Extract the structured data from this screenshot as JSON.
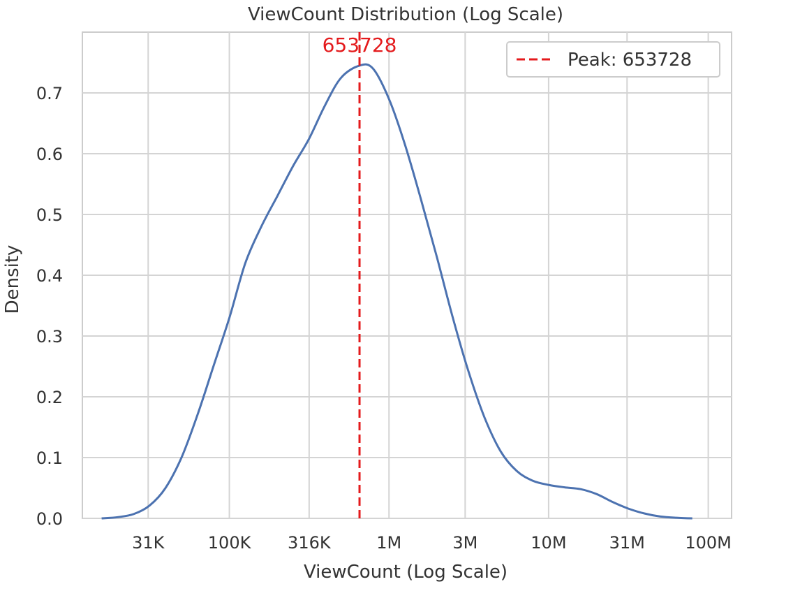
{
  "chart_data": {
    "type": "line",
    "title": "ViewCount Distribution (Log Scale)",
    "xlabel": "ViewCount (Log Scale)",
    "ylabel": "Density",
    "x_scale": "log",
    "xlim": [
      12000,
      140000000
    ],
    "ylim": [
      0,
      0.8
    ],
    "grid": true,
    "legend_position": "top-right",
    "x_ticks": [
      {
        "value": 31000,
        "label": "31K"
      },
      {
        "value": 100000,
        "label": "100K"
      },
      {
        "value": 316000,
        "label": "316K"
      },
      {
        "value": 1000000,
        "label": "1M"
      },
      {
        "value": 3000000,
        "label": "3M"
      },
      {
        "value": 10000000,
        "label": "10M"
      },
      {
        "value": 31000000,
        "label": "31M"
      },
      {
        "value": 100000000,
        "label": "100M"
      }
    ],
    "y_ticks": [
      {
        "value": 0.0,
        "label": "0.0"
      },
      {
        "value": 0.1,
        "label": "0.1"
      },
      {
        "value": 0.2,
        "label": "0.2"
      },
      {
        "value": 0.3,
        "label": "0.3"
      },
      {
        "value": 0.4,
        "label": "0.4"
      },
      {
        "value": 0.5,
        "label": "0.5"
      },
      {
        "value": 0.6,
        "label": "0.6"
      },
      {
        "value": 0.7,
        "label": "0.7"
      }
    ],
    "series": [
      {
        "color": "#4c72b0",
        "x": [
          15850,
          20000,
          25120,
          31620,
          39810,
          50120,
          63100,
          79430,
          100000,
          125900,
          158500,
          199500,
          251200,
          316200,
          398100,
          501200,
          653728,
          794300,
          1000000,
          1259000,
          1585000,
          1995000,
          2512000,
          3162000,
          3981000,
          5012000,
          6310000,
          7943000,
          10000000,
          12590000,
          15850000,
          19950000,
          25120000,
          31620000,
          39810000,
          50120000,
          63100000,
          79430000
        ],
        "y": [
          0.0,
          0.002,
          0.007,
          0.021,
          0.05,
          0.1,
          0.17,
          0.25,
          0.33,
          0.42,
          0.48,
          0.53,
          0.58,
          0.625,
          0.68,
          0.725,
          0.745,
          0.74,
          0.69,
          0.615,
          0.525,
          0.43,
          0.33,
          0.24,
          0.165,
          0.11,
          0.078,
          0.062,
          0.055,
          0.051,
          0.048,
          0.04,
          0.027,
          0.016,
          0.008,
          0.003,
          0.001,
          0.0
        ]
      }
    ],
    "peak": {
      "value": 653728,
      "label": "653728",
      "legend_label": "Peak: 653728",
      "color": "#e41a1c",
      "style": "dashed"
    }
  }
}
